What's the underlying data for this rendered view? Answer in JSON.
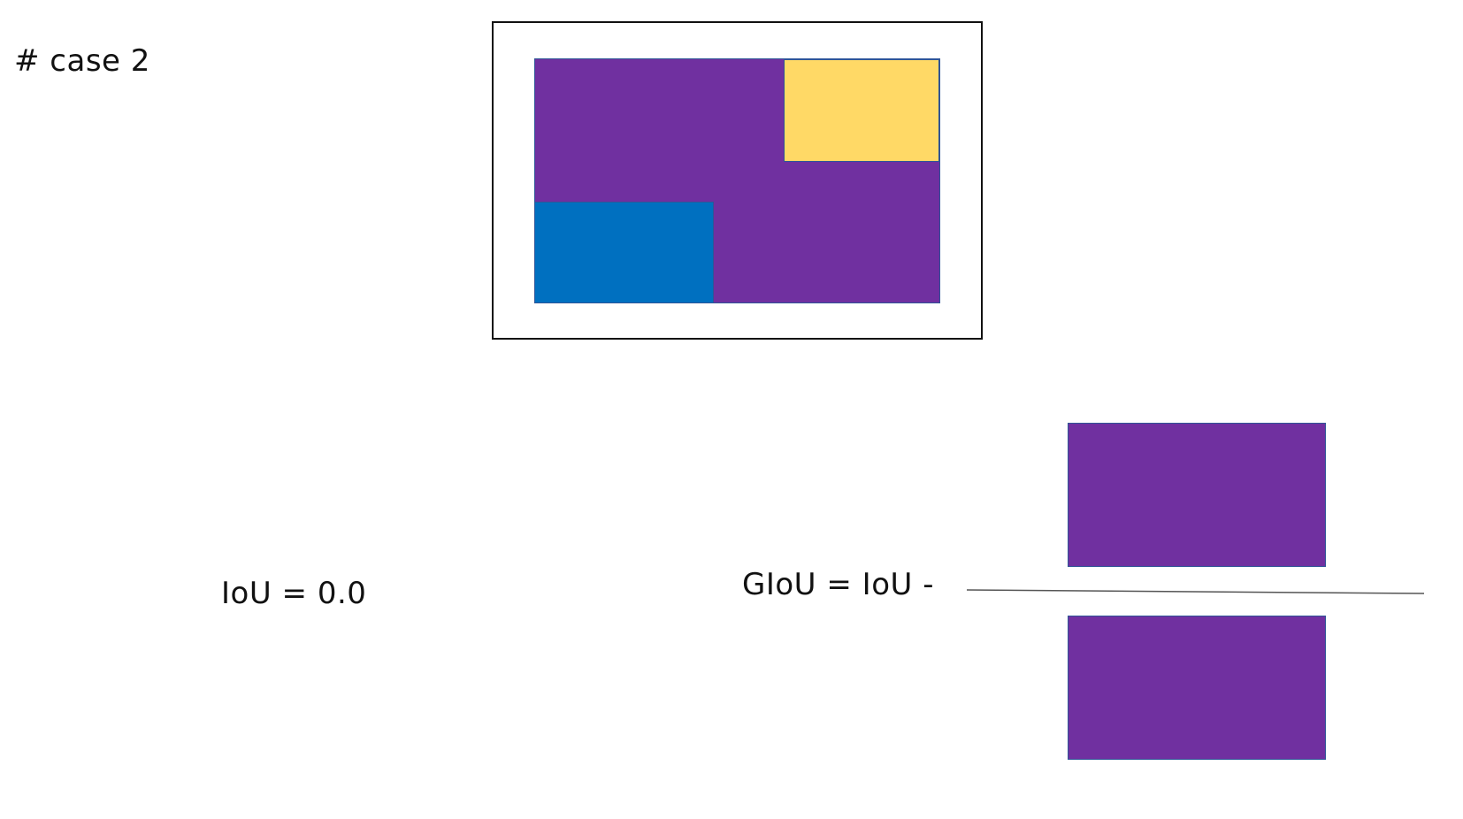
{
  "title": "# case 2",
  "formulas": {
    "iou": "IoU = 0.0",
    "giou_prefix": "GIoU = IoU -"
  },
  "colors": {
    "union_purple": "#7030a0",
    "yellow_box": "#ffd966",
    "blue_box": "#0070c0",
    "box_border": "#2f5597",
    "frame_border": "#111111",
    "fraction_line": "#555555"
  }
}
